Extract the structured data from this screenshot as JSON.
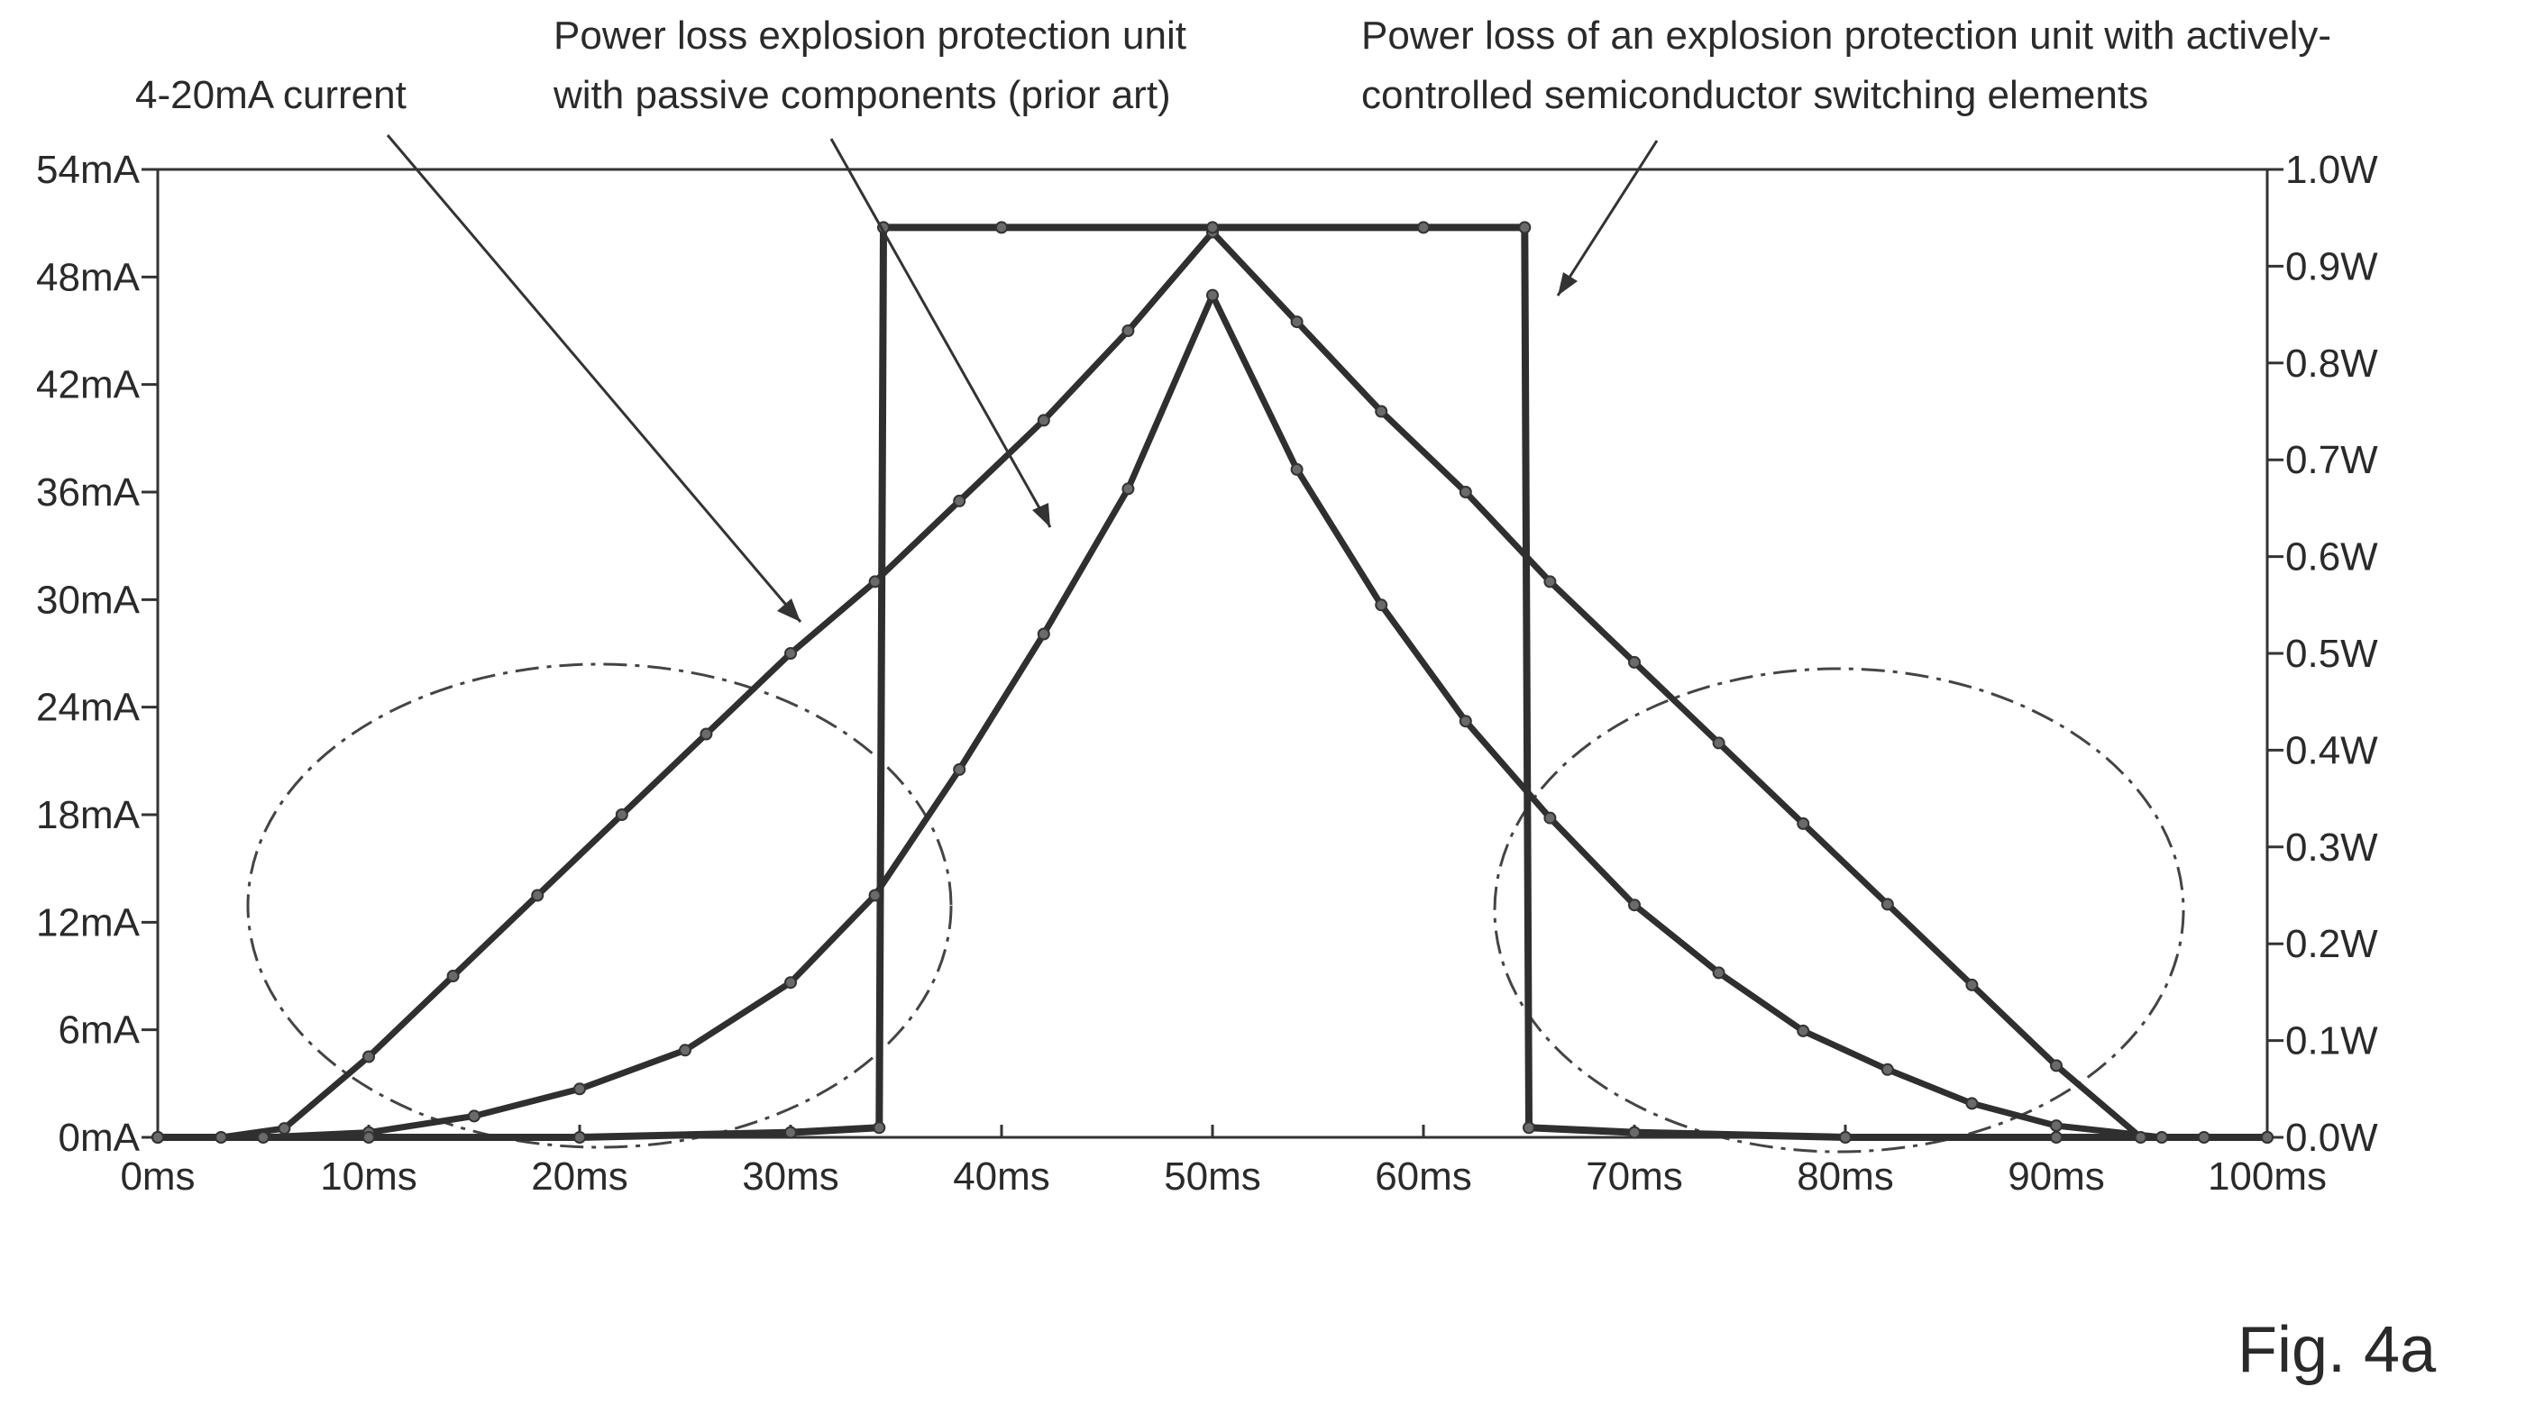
{
  "chart_data": {
    "type": "line",
    "x_ticks": [
      "0ms",
      "10ms",
      "20ms",
      "30ms",
      "40ms",
      "50ms",
      "60ms",
      "70ms",
      "80ms",
      "90ms",
      "100ms"
    ],
    "y_left_ticks": [
      "0mA",
      "6mA",
      "12mA",
      "18mA",
      "24mA",
      "30mA",
      "36mA",
      "42mA",
      "48mA",
      "54mA"
    ],
    "y_right_ticks": [
      "0.0W",
      "0.1W",
      "0.2W",
      "0.3W",
      "0.4W",
      "0.5W",
      "0.6W",
      "0.7W",
      "0.8W",
      "0.9W",
      "1.0W"
    ],
    "xlim": [
      0,
      100
    ],
    "ylim_left": [
      0,
      54
    ],
    "ylim_right": [
      0,
      1.0
    ],
    "grid": false,
    "series": [
      {
        "name": "4-20mA current",
        "axis": "left",
        "x": [
          0,
          3,
          6,
          10,
          14,
          18,
          22,
          26,
          30,
          34,
          38,
          42,
          46,
          50,
          54,
          58,
          62,
          66,
          70,
          74,
          78,
          82,
          86,
          90,
          94,
          97,
          100
        ],
        "y": [
          0,
          0,
          0.5,
          4.5,
          9,
          13.5,
          18,
          22.5,
          27,
          31,
          35.5,
          40,
          45,
          50.5,
          45.5,
          40.5,
          36,
          31,
          26.5,
          22,
          17.5,
          13,
          8.5,
          4,
          0,
          0,
          0
        ]
      },
      {
        "name": "Power loss explosion protection unit with passive components (prior art)",
        "axis": "right",
        "x": [
          0,
          5,
          10,
          15,
          20,
          25,
          30,
          34,
          38,
          42,
          46,
          50,
          54,
          58,
          62,
          66,
          70,
          74,
          78,
          82,
          86,
          90,
          95,
          100
        ],
        "y": [
          0,
          0,
          0.005,
          0.022,
          0.05,
          0.09,
          0.16,
          0.25,
          0.38,
          0.52,
          0.67,
          0.87,
          0.69,
          0.55,
          0.43,
          0.33,
          0.24,
          0.17,
          0.11,
          0.07,
          0.035,
          0.012,
          0,
          0
        ]
      },
      {
        "name": "Power loss of an explosion protection unit with actively-controlled semiconductor switching elements",
        "axis": "right",
        "x": [
          0,
          10,
          20,
          30,
          34.2,
          34.4,
          40,
          50,
          60,
          64.8,
          65,
          70,
          80,
          90,
          100
        ],
        "y": [
          0,
          0,
          0,
          0.005,
          0.01,
          0.94,
          0.94,
          0.94,
          0.94,
          0.94,
          0.01,
          0.005,
          0,
          0,
          0
        ]
      }
    ],
    "annotations": [
      {
        "text": "4-20mA current"
      },
      {
        "text": "Power loss explosion protection unit",
        "text2": "with passive components (prior art)"
      },
      {
        "text": "Power loss of an explosion protection unit with actively-",
        "text2": "controlled semiconductor switching elements"
      }
    ]
  },
  "figure_label": "Fig. 4a"
}
